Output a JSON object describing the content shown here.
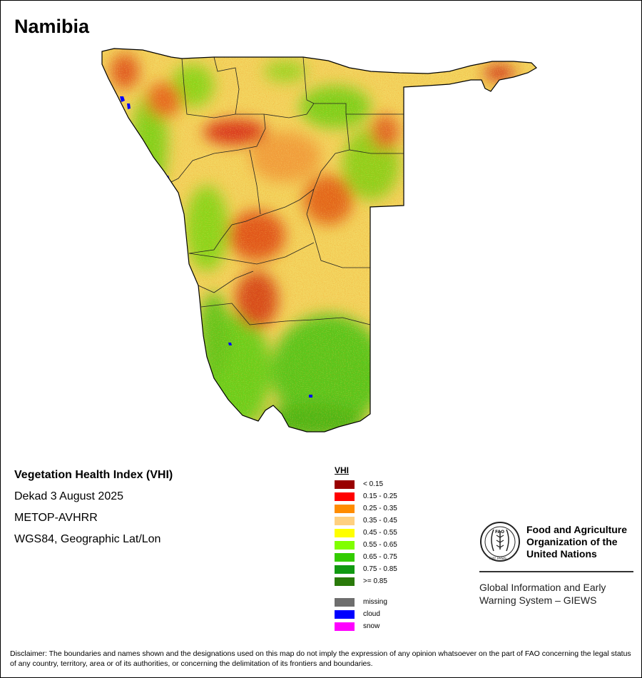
{
  "map": {
    "title": "Namibia",
    "subtitle": "Vegetation Health Index (VHI)",
    "period": "Dekad 3 August 2025",
    "sensor": "METOP-AVHRR",
    "projection": "WGS84, Geographic Lat/Lon"
  },
  "legend": {
    "title": "VHI",
    "classes": [
      {
        "label": "< 0.15",
        "color": "#990000"
      },
      {
        "label": "0.15 - 0.25",
        "color": "#ff0000"
      },
      {
        "label": "0.25 - 0.35",
        "color": "#ff8c00"
      },
      {
        "label": "0.35 - 0.45",
        "color": "#ffd080"
      },
      {
        "label": "0.45 - 0.55",
        "color": "#ffff00"
      },
      {
        "label": "0.55 - 0.65",
        "color": "#80ff00"
      },
      {
        "label": "0.65 - 0.75",
        "color": "#33cc00"
      },
      {
        "label": "0.75 - 0.85",
        "color": "#119911"
      },
      {
        "label": ">= 0.85",
        "color": "#2a7a0a"
      }
    ],
    "extra": [
      {
        "label": "missing",
        "color": "#6e6e6e"
      },
      {
        "label": "cloud",
        "color": "#0000ff"
      },
      {
        "label": "snow",
        "color": "#ff00ff"
      }
    ]
  },
  "org": {
    "logo_text": "FAO",
    "logo_motto": "FIAT PANIS",
    "name_line1": "Food and Agriculture",
    "name_line2": "Organization of the",
    "name_line3": "United Nations",
    "system_line1": "Global Information and Early",
    "system_line2": "Warning System – GIEWS"
  },
  "disclaimer": "Disclaimer: The boundaries and names shown and the designations used on this map do not imply the expression of any opinion whatsoever on the part of FAO concerning the legal status of any country, territory, area or of its authorities, or concerning the delimitation of its frontiers and boundaries."
}
